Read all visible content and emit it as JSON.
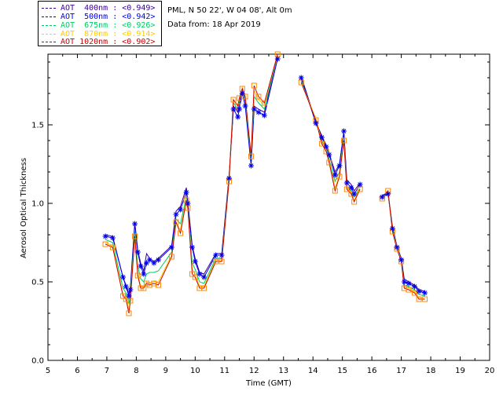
{
  "info": {
    "line1": "PML, N 50 22', W 04 08', Alt 0m",
    "line2": "Data from: 18 Apr 2019"
  },
  "legend": [
    {
      "label": "AOT  400nm : <0.949>",
      "color": "#3a0094"
    },
    {
      "label": "AOT  500nm : <0.942>",
      "color": "#0000ee"
    },
    {
      "label": "AOT  675nm : <0.926>",
      "color": "#00cc66"
    },
    {
      "label": "AOT  870nm : <0.914>",
      "color": "#ffcc00"
    },
    {
      "label": "AOT 1020nm : <0.902>",
      "color": "#cc0000"
    }
  ],
  "chart_data": {
    "type": "line",
    "xlabel": "Time (GMT)",
    "ylabel": "Aerosol Optical Thickness",
    "xlim": [
      5,
      20
    ],
    "ylim": [
      0.0,
      1.95
    ],
    "xticks": [
      "5",
      "6",
      "7",
      "8",
      "9",
      "10",
      "11",
      "12",
      "13",
      "14",
      "15",
      "16",
      "17",
      "18",
      "19",
      "20"
    ],
    "yticks": [
      "0.0",
      "0.5",
      "1.0",
      "1.5"
    ],
    "markers": {
      "AOT 500nm": "asterisk",
      "AOT 1020nm": "open-square"
    },
    "series": [
      {
        "name": "AOT 400nm",
        "color": "#3a0094",
        "x": [
          6.95,
          7.2,
          7.55,
          7.65,
          7.75,
          7.8,
          7.95,
          8.05,
          8.15,
          8.25,
          8.35,
          8.45,
          8.6,
          8.75,
          9.2,
          9.35,
          9.5,
          9.7,
          9.75,
          9.9,
          10.0,
          10.15,
          10.3,
          10.7,
          10.9,
          11.15,
          11.3,
          11.45,
          11.5,
          11.6,
          11.7,
          11.9,
          12.0,
          12.15,
          12.35,
          12.8,
          13.6,
          14.1,
          14.3,
          14.45,
          14.55,
          14.75,
          14.9,
          15.05,
          15.15,
          15.3,
          15.4,
          15.6,
          16.35,
          16.55,
          16.7,
          16.85,
          17.0,
          17.1,
          17.25,
          17.45,
          17.6,
          17.8
        ],
        "y": [
          0.8,
          0.79,
          0.53,
          0.48,
          0.42,
          0.47,
          0.88,
          0.7,
          0.62,
          0.57,
          0.68,
          0.65,
          0.63,
          0.65,
          0.73,
          0.95,
          0.98,
          1.1,
          1.01,
          0.73,
          0.65,
          0.56,
          0.55,
          0.68,
          0.68,
          1.17,
          1.62,
          1.58,
          1.63,
          1.72,
          1.65,
          1.26,
          1.62,
          1.6,
          1.58,
          1.95,
          1.81,
          1.52,
          1.43,
          1.37,
          1.32,
          1.2,
          1.25,
          1.45,
          1.15,
          1.12,
          1.08,
          1.13,
          1.05,
          1.07,
          0.85,
          0.73,
          0.65,
          0.52,
          0.5,
          0.48,
          0.45,
          0.44
        ]
      },
      {
        "name": "AOT 500nm",
        "color": "#0000ee",
        "x": [
          6.95,
          7.2,
          7.55,
          7.65,
          7.75,
          7.8,
          7.95,
          8.05,
          8.15,
          8.25,
          8.35,
          8.45,
          8.6,
          8.75,
          9.2,
          9.35,
          9.5,
          9.7,
          9.75,
          9.9,
          10.0,
          10.15,
          10.3,
          10.7,
          10.9,
          11.15,
          11.3,
          11.45,
          11.5,
          11.6,
          11.7,
          11.9,
          12.0,
          12.15,
          12.35,
          12.8,
          13.6,
          14.1,
          14.3,
          14.45,
          14.55,
          14.75,
          14.9,
          15.05,
          15.15,
          15.3,
          15.4,
          15.6,
          16.35,
          16.55,
          16.7,
          16.85,
          17.0,
          17.1,
          17.25,
          17.45,
          17.6,
          17.8
        ],
        "y": [
          0.79,
          0.78,
          0.53,
          0.47,
          0.41,
          0.45,
          0.87,
          0.69,
          0.6,
          0.55,
          0.62,
          0.64,
          0.62,
          0.64,
          0.72,
          0.93,
          0.96,
          1.07,
          1.0,
          0.72,
          0.63,
          0.55,
          0.53,
          0.67,
          0.67,
          1.16,
          1.6,
          1.55,
          1.6,
          1.7,
          1.62,
          1.24,
          1.6,
          1.58,
          1.56,
          1.92,
          1.8,
          1.51,
          1.42,
          1.36,
          1.31,
          1.18,
          1.24,
          1.46,
          1.13,
          1.1,
          1.06,
          1.12,
          1.04,
          1.06,
          0.84,
          0.72,
          0.64,
          0.5,
          0.49,
          0.47,
          0.44,
          0.43
        ]
      },
      {
        "name": "AOT 675nm",
        "color": "#00cc66",
        "x": [
          6.95,
          7.2,
          7.55,
          7.65,
          7.75,
          7.8,
          7.95,
          8.05,
          8.15,
          8.25,
          8.35,
          8.45,
          8.6,
          8.75,
          9.2,
          9.35,
          9.5,
          9.7,
          9.75,
          9.9,
          10.0,
          10.15,
          10.3,
          10.7,
          10.9,
          11.15,
          11.3,
          11.45,
          11.5,
          11.6,
          11.7,
          11.9,
          12.0,
          12.15,
          12.35,
          12.8,
          13.6,
          14.1,
          14.3,
          14.45,
          14.55,
          14.75,
          14.9,
          15.05,
          15.15,
          15.3,
          15.4,
          15.6,
          16.35,
          16.55,
          16.7,
          16.85,
          17.0,
          17.1,
          17.25,
          17.45,
          17.6,
          17.8
        ],
        "y": [
          0.77,
          0.75,
          0.46,
          0.43,
          0.36,
          0.42,
          0.83,
          0.6,
          0.52,
          0.5,
          0.55,
          0.56,
          0.56,
          0.57,
          0.69,
          0.9,
          0.87,
          1.04,
          0.98,
          0.62,
          0.58,
          0.5,
          0.49,
          0.65,
          0.65,
          1.15,
          1.64,
          1.6,
          1.65,
          1.73,
          1.66,
          1.28,
          1.68,
          1.64,
          1.6,
          1.96,
          1.78,
          1.53,
          1.4,
          1.35,
          1.28,
          1.14,
          1.2,
          1.42,
          1.1,
          1.08,
          1.04,
          1.1,
          1.04,
          1.07,
          0.83,
          0.72,
          0.64,
          0.48,
          0.47,
          0.45,
          0.42,
          0.41
        ]
      },
      {
        "name": "AOT 870nm",
        "color": "#ffcc00",
        "x": [
          6.95,
          7.2,
          7.55,
          7.65,
          7.75,
          7.8,
          7.95,
          8.05,
          8.15,
          8.25,
          8.35,
          8.45,
          8.6,
          8.75,
          9.2,
          9.35,
          9.5,
          9.7,
          9.75,
          9.9,
          10.0,
          10.15,
          10.3,
          10.7,
          10.9,
          11.15,
          11.3,
          11.45,
          11.5,
          11.6,
          11.7,
          11.9,
          12.0,
          12.15,
          12.35,
          12.8,
          13.6,
          14.1,
          14.3,
          14.45,
          14.55,
          14.75,
          14.9,
          15.05,
          15.15,
          15.3,
          15.4,
          15.6,
          16.35,
          16.55,
          16.7,
          16.85,
          17.0,
          17.1,
          17.25,
          17.45,
          17.6,
          17.8
        ],
        "y": [
          0.75,
          0.73,
          0.42,
          0.4,
          0.32,
          0.39,
          0.8,
          0.56,
          0.47,
          0.47,
          0.5,
          0.49,
          0.5,
          0.5,
          0.67,
          0.88,
          0.83,
          1.03,
          0.97,
          0.58,
          0.55,
          0.47,
          0.47,
          0.64,
          0.63,
          1.14,
          1.66,
          1.62,
          1.67,
          1.74,
          1.68,
          1.3,
          1.72,
          1.66,
          1.63,
          1.98,
          1.77,
          1.54,
          1.39,
          1.33,
          1.27,
          1.1,
          1.18,
          1.41,
          1.1,
          1.07,
          1.02,
          1.1,
          1.03,
          1.08,
          0.82,
          0.72,
          0.63,
          0.47,
          0.46,
          0.44,
          0.4,
          0.39
        ]
      },
      {
        "name": "AOT 1020nm",
        "color": "#cc0000",
        "x": [
          6.95,
          7.2,
          7.55,
          7.65,
          7.75,
          7.8,
          7.95,
          8.05,
          8.15,
          8.25,
          8.35,
          8.45,
          8.6,
          8.75,
          9.2,
          9.35,
          9.5,
          9.7,
          9.75,
          9.9,
          10.0,
          10.15,
          10.3,
          10.7,
          10.9,
          11.15,
          11.3,
          11.45,
          11.5,
          11.6,
          11.7,
          11.9,
          12.0,
          12.15,
          12.35,
          12.8,
          13.6,
          14.1,
          14.3,
          14.45,
          14.55,
          14.75,
          14.9,
          15.05,
          15.15,
          15.3,
          15.4,
          15.6,
          16.35,
          16.55,
          16.7,
          16.85,
          17.0,
          17.1,
          17.25,
          17.45,
          17.6,
          17.8
        ],
        "y": [
          0.74,
          0.72,
          0.41,
          0.39,
          0.3,
          0.38,
          0.79,
          0.54,
          0.46,
          0.46,
          0.49,
          0.48,
          0.49,
          0.48,
          0.66,
          0.88,
          0.81,
          1.02,
          0.97,
          0.55,
          0.53,
          0.46,
          0.46,
          0.63,
          0.63,
          1.14,
          1.66,
          1.62,
          1.67,
          1.73,
          1.68,
          1.3,
          1.75,
          1.68,
          1.64,
          1.98,
          1.77,
          1.53,
          1.38,
          1.33,
          1.26,
          1.08,
          1.17,
          1.4,
          1.09,
          1.06,
          1.01,
          1.09,
          1.03,
          1.08,
          0.82,
          0.71,
          0.63,
          0.46,
          0.45,
          0.43,
          0.39,
          0.39
        ]
      }
    ]
  }
}
